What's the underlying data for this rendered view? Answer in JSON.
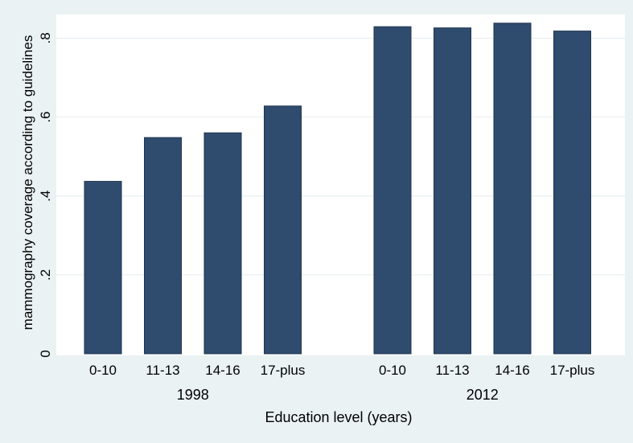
{
  "chart_data": {
    "type": "bar",
    "title": "",
    "xlabel": "Education level (years)",
    "ylabel": "mammography coverage according to guidelines",
    "ylim": [
      0,
      0.86
    ],
    "yticks": [
      {
        "value": 0,
        "label": "0"
      },
      {
        "value": 0.2,
        "label": ".2"
      },
      {
        "value": 0.4,
        "label": ".4"
      },
      {
        "value": 0.6,
        "label": ".6"
      },
      {
        "value": 0.8,
        "label": ".8"
      }
    ],
    "grid": true,
    "legend": "none",
    "bar_color": "#2f4b6e",
    "groups": [
      {
        "name": "1998",
        "categories": [
          "0-10",
          "11-13",
          "14-16",
          "17-plus"
        ],
        "values": [
          0.437,
          0.548,
          0.56,
          0.628
        ]
      },
      {
        "name": "2012",
        "categories": [
          "0-10",
          "11-13",
          "14-16",
          "17-plus"
        ],
        "values": [
          0.829,
          0.826,
          0.838,
          0.818
        ]
      }
    ]
  }
}
